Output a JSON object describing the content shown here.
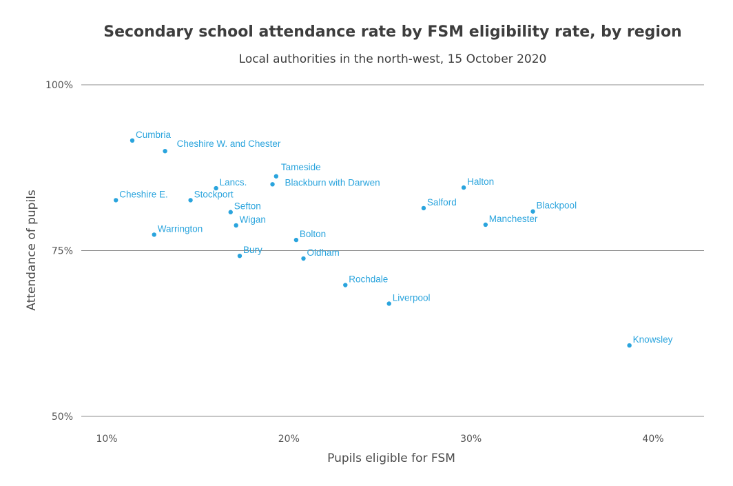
{
  "chart_data": {
    "type": "scatter",
    "title": "Secondary school attendance rate by FSM eligibility rate, by region",
    "subtitle": "Local authorities in the north-west, 15 October 2020",
    "xlabel": "Pupils eligible for FSM",
    "ylabel": "Attendance of pupils",
    "xlim": [
      8.6,
      42.8
    ],
    "ylim": [
      50,
      100
    ],
    "x_ticks": [
      {
        "value": 10,
        "label": "10%"
      },
      {
        "value": 20,
        "label": "20%"
      },
      {
        "value": 30,
        "label": "30%"
      },
      {
        "value": 40,
        "label": "40%"
      }
    ],
    "y_ticks": [
      {
        "value": 100,
        "label": "100%"
      },
      {
        "value": 75,
        "label": "75%"
      },
      {
        "value": 50,
        "label": "50%"
      }
    ],
    "grid": "horizontal",
    "color": "#2aa4dd",
    "points": [
      {
        "name": "Cumbria",
        "x": 11.4,
        "y": 91.6
      },
      {
        "name": "Cheshire W. and Chester",
        "x": 13.2,
        "y": 90.0
      },
      {
        "name": "Cheshire E.",
        "x": 10.5,
        "y": 82.6
      },
      {
        "name": "Warrington",
        "x": 12.6,
        "y": 77.4
      },
      {
        "name": "Stockport",
        "x": 14.6,
        "y": 82.6
      },
      {
        "name": "Lancs.",
        "x": 16.0,
        "y": 84.4
      },
      {
        "name": "Sefton",
        "x": 16.8,
        "y": 80.8
      },
      {
        "name": "Wigan",
        "x": 17.1,
        "y": 78.8
      },
      {
        "name": "Bury",
        "x": 17.3,
        "y": 74.2
      },
      {
        "name": "Tameside",
        "x": 19.3,
        "y": 86.2
      },
      {
        "name": "Blackburn with Darwen",
        "x": 19.1,
        "y": 85.0
      },
      {
        "name": "Bolton",
        "x": 20.4,
        "y": 76.6
      },
      {
        "name": "Oldham",
        "x": 20.8,
        "y": 73.8
      },
      {
        "name": "Rochdale",
        "x": 23.1,
        "y": 69.8
      },
      {
        "name": "Liverpool",
        "x": 25.5,
        "y": 67.0
      },
      {
        "name": "Salford",
        "x": 27.4,
        "y": 81.4
      },
      {
        "name": "Halton",
        "x": 29.6,
        "y": 84.5
      },
      {
        "name": "Manchester",
        "x": 30.8,
        "y": 78.9
      },
      {
        "name": "Blackpool",
        "x": 33.4,
        "y": 80.9
      },
      {
        "name": "Knowsley",
        "x": 38.7,
        "y": 60.7
      }
    ]
  }
}
